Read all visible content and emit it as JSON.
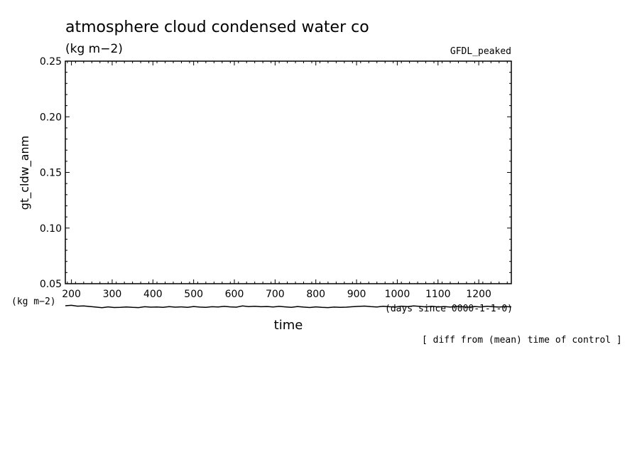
{
  "chart_data": {
    "type": "line",
    "title": "atmosphere cloud condensed water co",
    "subtitle": "(kg m−2)",
    "experiment_label": "GFDL_peaked",
    "ylabel": "gt_cldw_anm",
    "yunits": "(kg m−2)",
    "xlabel": "time",
    "xunits": "(days since 0000-1-1-0)",
    "note": "[ diff from (mean) time of control ]",
    "xlim": [
      185,
      1280
    ],
    "ylim": [
      0.05,
      0.25
    ],
    "xticks": [
      200,
      300,
      400,
      500,
      600,
      700,
      800,
      900,
      1000,
      1100,
      1200
    ],
    "xtick_labels": [
      "200",
      "300",
      "400",
      "500",
      "600",
      "700",
      "800",
      "900",
      "1000",
      "1100",
      "1200"
    ],
    "yticks": [
      0.05,
      0.1,
      0.15,
      0.2,
      0.25
    ],
    "ytick_labels": [
      "0.05",
      "0.10",
      "0.15",
      "0.20",
      "0.25"
    ],
    "grid": false,
    "series": [
      {
        "color": "#000000",
        "x": [
          185,
          200,
          215,
          230,
          245,
          260,
          275,
          290,
          305,
          320,
          335,
          350,
          365,
          380,
          395,
          410,
          425,
          440,
          455,
          470,
          485,
          500,
          515,
          530,
          545,
          560,
          575,
          590,
          605,
          620,
          635,
          650,
          665,
          680,
          695,
          710,
          725,
          740,
          755,
          770,
          785,
          800,
          815,
          830,
          845,
          860,
          875,
          890,
          905,
          920,
          935,
          950,
          965,
          980,
          995,
          1010,
          1025,
          1040,
          1055,
          1070,
          1085,
          1100,
          1115,
          1130,
          1145,
          1160,
          1175,
          1190,
          1205,
          1220,
          1235,
          1250,
          1265,
          1280
        ],
        "values": [
          0.0302,
          0.0306,
          0.0298,
          0.03,
          0.0295,
          0.029,
          0.0284,
          0.0292,
          0.0286,
          0.0288,
          0.0291,
          0.0287,
          0.0285,
          0.0293,
          0.0289,
          0.0291,
          0.0287,
          0.0294,
          0.0289,
          0.0292,
          0.0288,
          0.0295,
          0.029,
          0.0287,
          0.0293,
          0.0291,
          0.0296,
          0.0292,
          0.0289,
          0.03,
          0.0294,
          0.0297,
          0.0293,
          0.0295,
          0.0291,
          0.0296,
          0.0292,
          0.0288,
          0.0295,
          0.029,
          0.0286,
          0.0292,
          0.0288,
          0.0285,
          0.029,
          0.0287,
          0.0289,
          0.0293,
          0.0296,
          0.0299,
          0.0294,
          0.0291,
          0.0297,
          0.0293,
          0.029,
          0.0298,
          0.0294,
          0.03,
          0.0296,
          0.0292,
          0.0297,
          0.0291,
          0.0295,
          0.029,
          0.0296,
          0.0293,
          0.0289,
          0.0295,
          0.0291,
          0.0297,
          0.0293,
          0.029,
          0.0295,
          0.0292
        ]
      }
    ]
  }
}
